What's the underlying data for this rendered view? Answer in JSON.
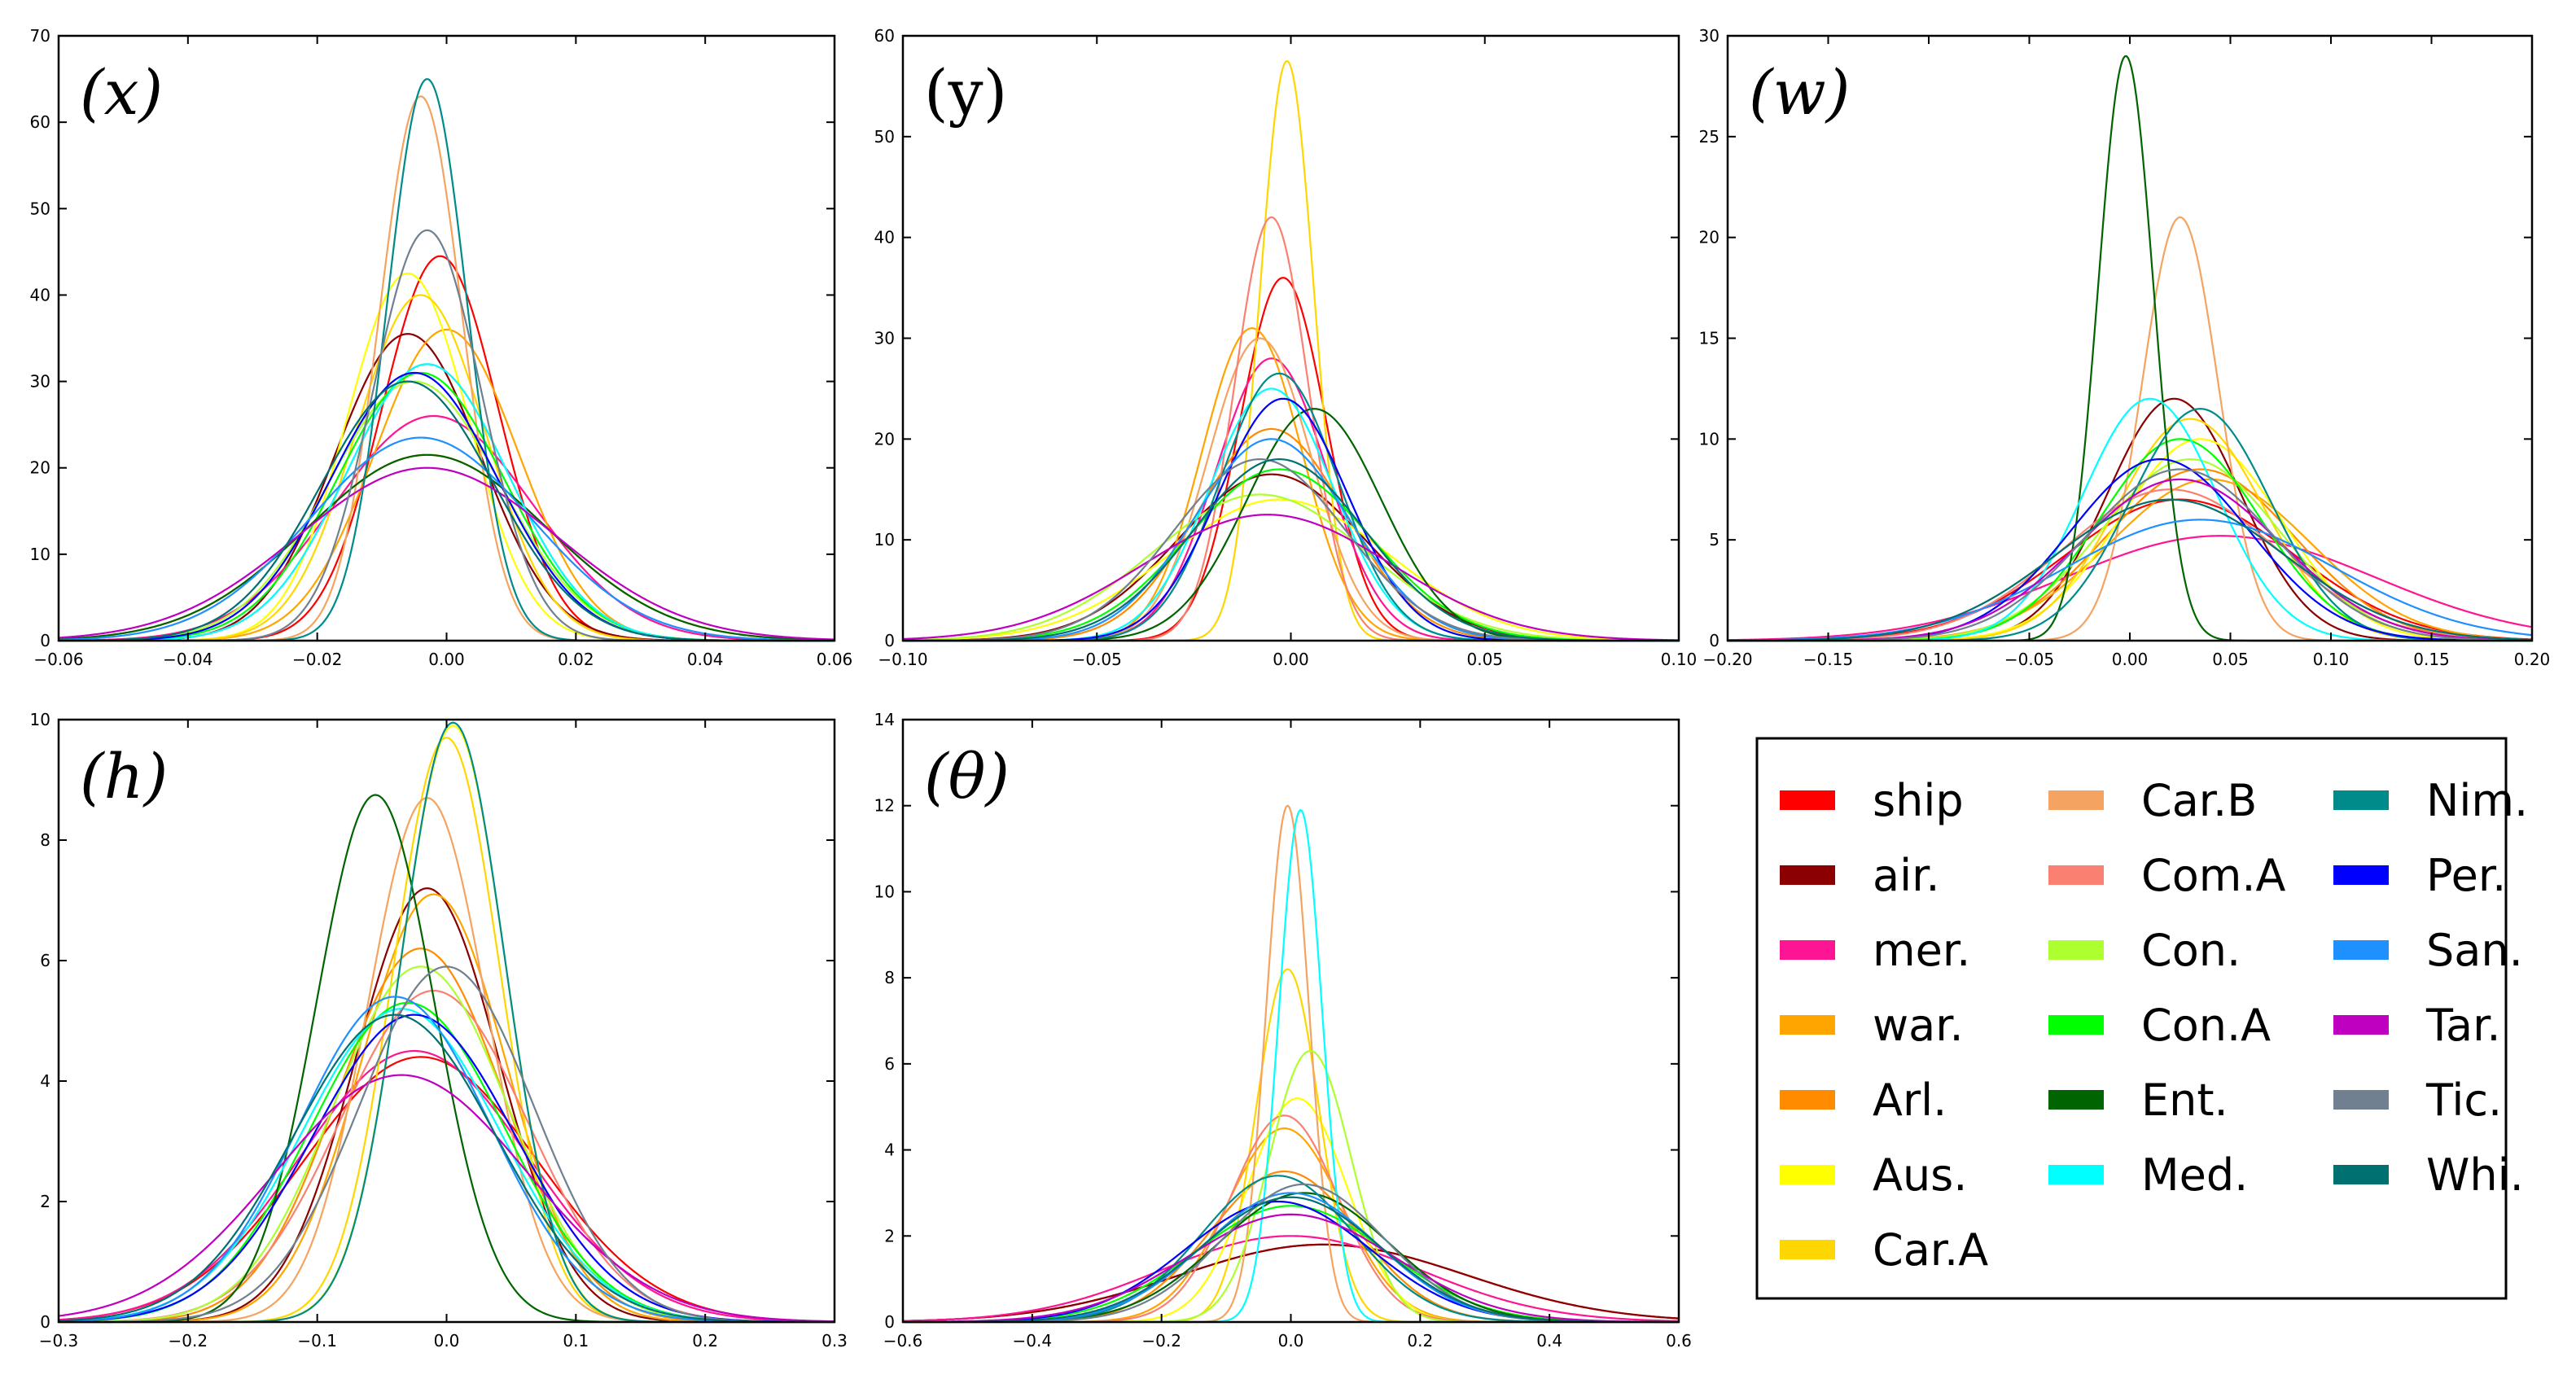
{
  "chart_data": [
    {
      "type": "line",
      "panel_label": "(x)",
      "label_italic": true,
      "xlim": [
        -0.06,
        0.06
      ],
      "ylim": [
        0,
        70
      ],
      "xticks": [
        -0.06,
        -0.04,
        -0.02,
        0.0,
        0.02,
        0.04,
        0.06
      ],
      "xtick_labels": [
        "−0.06",
        "−0.04",
        "−0.02",
        "0.00",
        "0.02",
        "0.04",
        "0.06"
      ],
      "yticks": [
        0,
        10,
        20,
        30,
        40,
        50,
        60,
        70
      ],
      "ytick_labels": [
        "0",
        "10",
        "20",
        "30",
        "40",
        "50",
        "60",
        "70"
      ],
      "series": [
        {
          "name": "ship",
          "mean": -0.001,
          "peak": 44.5
        },
        {
          "name": "air.",
          "mean": -0.006,
          "peak": 35.5
        },
        {
          "name": "mer.",
          "mean": -0.002,
          "peak": 26
        },
        {
          "name": "war.",
          "mean": 0.0,
          "peak": 36
        },
        {
          "name": "Arl.",
          "mean": -0.003,
          "peak": 21.5
        },
        {
          "name": "Aus.",
          "mean": -0.006,
          "peak": 42.5
        },
        {
          "name": "Car.A",
          "mean": -0.004,
          "peak": 40
        },
        {
          "name": "Car.B",
          "mean": -0.004,
          "peak": 63
        },
        {
          "name": "Com.A",
          "mean": -0.003,
          "peak": 32
        },
        {
          "name": "Con.",
          "mean": -0.005,
          "peak": 30
        },
        {
          "name": "Con.A",
          "mean": -0.004,
          "peak": 31
        },
        {
          "name": "Ent.",
          "mean": -0.003,
          "peak": 21.5
        },
        {
          "name": "Med.",
          "mean": -0.003,
          "peak": 32
        },
        {
          "name": "Nim.",
          "mean": -0.003,
          "peak": 65
        },
        {
          "name": "Per.",
          "mean": -0.005,
          "peak": 31
        },
        {
          "name": "San.",
          "mean": -0.004,
          "peak": 23.5
        },
        {
          "name": "Tar.",
          "mean": -0.003,
          "peak": 20
        },
        {
          "name": "Tic.",
          "mean": -0.003,
          "peak": 47.5
        },
        {
          "name": "Whi.",
          "mean": -0.006,
          "peak": 30
        }
      ]
    },
    {
      "type": "line",
      "panel_label": "(y)",
      "label_italic": false,
      "xlim": [
        -0.1,
        0.1
      ],
      "ylim": [
        0,
        60
      ],
      "xticks": [
        -0.1,
        -0.05,
        0.0,
        0.05,
        0.1
      ],
      "xtick_labels": [
        "−0.10",
        "−0.05",
        "0.00",
        "0.05",
        "0.10"
      ],
      "yticks": [
        0,
        10,
        20,
        30,
        40,
        50,
        60
      ],
      "ytick_labels": [
        "0",
        "10",
        "20",
        "30",
        "40",
        "50",
        "60"
      ],
      "series": [
        {
          "name": "ship",
          "mean": -0.002,
          "peak": 36
        },
        {
          "name": "air.",
          "mean": -0.005,
          "peak": 16.5
        },
        {
          "name": "mer.",
          "mean": -0.005,
          "peak": 28
        },
        {
          "name": "war.",
          "mean": -0.01,
          "peak": 31
        },
        {
          "name": "Arl.",
          "mean": -0.005,
          "peak": 21
        },
        {
          "name": "Aus.",
          "mean": -0.003,
          "peak": 14
        },
        {
          "name": "Car.A",
          "mean": -0.001,
          "peak": 57.5
        },
        {
          "name": "Car.B",
          "mean": -0.008,
          "peak": 30
        },
        {
          "name": "Com.A",
          "mean": -0.005,
          "peak": 42
        },
        {
          "name": "Con.",
          "mean": -0.008,
          "peak": 14.5
        },
        {
          "name": "Con.A",
          "mean": -0.003,
          "peak": 17
        },
        {
          "name": "Ent.",
          "mean": 0.006,
          "peak": 23
        },
        {
          "name": "Med.",
          "mean": -0.005,
          "peak": 25
        },
        {
          "name": "Nim.",
          "mean": -0.003,
          "peak": 26.5
        },
        {
          "name": "Per.",
          "mean": -0.002,
          "peak": 24
        },
        {
          "name": "San.",
          "mean": -0.005,
          "peak": 20
        },
        {
          "name": "Tar.",
          "mean": -0.006,
          "peak": 12.5
        },
        {
          "name": "Tic.",
          "mean": -0.008,
          "peak": 18
        },
        {
          "name": "Whi.",
          "mean": -0.003,
          "peak": 18
        }
      ]
    },
    {
      "type": "line",
      "panel_label": "(w)",
      "label_italic": true,
      "xlim": [
        -0.2,
        0.2
      ],
      "ylim": [
        0,
        30
      ],
      "xticks": [
        -0.2,
        -0.15,
        -0.1,
        -0.05,
        0.0,
        0.05,
        0.1,
        0.15,
        0.2
      ],
      "xtick_labels": [
        "−0.20",
        "−0.15",
        "−0.10",
        "−0.05",
        "0.00",
        "0.05",
        "0.10",
        "0.15",
        "0.20"
      ],
      "yticks": [
        0,
        5,
        10,
        15,
        20,
        25,
        30
      ],
      "ytick_labels": [
        "0",
        "5",
        "10",
        "15",
        "20",
        "25",
        "30"
      ],
      "series": [
        {
          "name": "ship",
          "mean": 0.025,
          "peak": 7
        },
        {
          "name": "air.",
          "mean": 0.022,
          "peak": 12
        },
        {
          "name": "mer.",
          "mean": 0.045,
          "peak": 5.2
        },
        {
          "name": "war.",
          "mean": 0.04,
          "peak": 8
        },
        {
          "name": "Arl.",
          "mean": 0.035,
          "peak": 8.5
        },
        {
          "name": "Aus.",
          "mean": 0.035,
          "peak": 10
        },
        {
          "name": "Car.A",
          "mean": 0.03,
          "peak": 11
        },
        {
          "name": "Car.B",
          "mean": 0.025,
          "peak": 21
        },
        {
          "name": "Com.A",
          "mean": 0.02,
          "peak": 7.5
        },
        {
          "name": "Con.",
          "mean": 0.03,
          "peak": 9
        },
        {
          "name": "Con.A",
          "mean": 0.025,
          "peak": 10
        },
        {
          "name": "Ent.",
          "mean": -0.002,
          "peak": 29
        },
        {
          "name": "Med.",
          "mean": 0.01,
          "peak": 12
        },
        {
          "name": "Nim.",
          "mean": 0.035,
          "peak": 11.5
        },
        {
          "name": "Per.",
          "mean": 0.015,
          "peak": 9
        },
        {
          "name": "San.",
          "mean": 0.035,
          "peak": 6
        },
        {
          "name": "Tar.",
          "mean": 0.025,
          "peak": 8
        },
        {
          "name": "Tic.",
          "mean": 0.025,
          "peak": 8.5
        },
        {
          "name": "Whi.",
          "mean": 0.02,
          "peak": 7
        }
      ]
    },
    {
      "type": "line",
      "panel_label": "(h)",
      "label_italic": true,
      "xlim": [
        -0.3,
        0.3
      ],
      "ylim": [
        0,
        10
      ],
      "xticks": [
        -0.3,
        -0.2,
        -0.1,
        0.0,
        0.1,
        0.2,
        0.3
      ],
      "xtick_labels": [
        "−0.3",
        "−0.2",
        "−0.1",
        "0.0",
        "0.1",
        "0.2",
        "0.3"
      ],
      "yticks": [
        0,
        2,
        4,
        6,
        8,
        10
      ],
      "ytick_labels": [
        "0",
        "2",
        "4",
        "6",
        "8",
        "10"
      ],
      "series": [
        {
          "name": "ship",
          "mean": -0.02,
          "peak": 4.4
        },
        {
          "name": "air.",
          "mean": -0.015,
          "peak": 7.2
        },
        {
          "name": "mer.",
          "mean": -0.025,
          "peak": 4.5
        },
        {
          "name": "war.",
          "mean": -0.01,
          "peak": 7.1
        },
        {
          "name": "Arl.",
          "mean": -0.02,
          "peak": 6.2
        },
        {
          "name": "Aus.",
          "mean": 0.005,
          "peak": 9.9
        },
        {
          "name": "Car.A",
          "mean": 0.0,
          "peak": 9.7
        },
        {
          "name": "Car.B",
          "mean": -0.015,
          "peak": 8.7
        },
        {
          "name": "Com.A",
          "mean": -0.01,
          "peak": 5.5
        },
        {
          "name": "Con.",
          "mean": -0.02,
          "peak": 5.9
        },
        {
          "name": "Con.A",
          "mean": -0.03,
          "peak": 5.3
        },
        {
          "name": "Ent.",
          "mean": -0.055,
          "peak": 8.75
        },
        {
          "name": "Med.",
          "mean": -0.035,
          "peak": 5.2
        },
        {
          "name": "Nim.",
          "mean": 0.005,
          "peak": 9.95
        },
        {
          "name": "Per.",
          "mean": -0.025,
          "peak": 5.1
        },
        {
          "name": "San.",
          "mean": -0.04,
          "peak": 5.4
        },
        {
          "name": "Tar.",
          "mean": -0.035,
          "peak": 4.1
        },
        {
          "name": "Tic.",
          "mean": 0.0,
          "peak": 5.9
        },
        {
          "name": "Whi.",
          "mean": -0.04,
          "peak": 5.1
        }
      ]
    },
    {
      "type": "line",
      "panel_label": "(θ)",
      "label_italic": true,
      "xlim": [
        -0.6,
        0.6
      ],
      "ylim": [
        0,
        14
      ],
      "xticks": [
        -0.6,
        -0.4,
        -0.2,
        0.0,
        0.2,
        0.4,
        0.6
      ],
      "xtick_labels": [
        "−0.6",
        "−0.4",
        "−0.2",
        "0.0",
        "0.2",
        "0.4",
        "0.6"
      ],
      "yticks": [
        0,
        2,
        4,
        6,
        8,
        10,
        12,
        14
      ],
      "ytick_labels": [
        "0",
        "2",
        "4",
        "6",
        "8",
        "10",
        "12",
        "14"
      ],
      "series": [
        {
          "name": "ship",
          "mean": 0.05,
          "peak": 1.8
        },
        {
          "name": "air.",
          "mean": 0.05,
          "peak": 1.8
        },
        {
          "name": "mer.",
          "mean": 0.0,
          "peak": 2.0
        },
        {
          "name": "war.",
          "mean": -0.01,
          "peak": 4.5
        },
        {
          "name": "Arl.",
          "mean": -0.01,
          "peak": 3.5
        },
        {
          "name": "Aus.",
          "mean": 0.01,
          "peak": 5.2
        },
        {
          "name": "Car.A",
          "mean": -0.005,
          "peak": 8.2
        },
        {
          "name": "Car.B",
          "mean": -0.005,
          "peak": 12.0
        },
        {
          "name": "Com.A",
          "mean": -0.01,
          "peak": 4.8
        },
        {
          "name": "Con.",
          "mean": 0.03,
          "peak": 6.3
        },
        {
          "name": "Con.A",
          "mean": 0.0,
          "peak": 2.7
        },
        {
          "name": "Ent.",
          "mean": 0.02,
          "peak": 3.0
        },
        {
          "name": "Med.",
          "mean": 0.015,
          "peak": 11.9
        },
        {
          "name": "Nim.",
          "mean": -0.02,
          "peak": 3.4
        },
        {
          "name": "Per.",
          "mean": -0.02,
          "peak": 2.8
        },
        {
          "name": "San.",
          "mean": 0.0,
          "peak": 3.0
        },
        {
          "name": "Tar.",
          "mean": 0.0,
          "peak": 2.5
        },
        {
          "name": "Tic.",
          "mean": 0.02,
          "peak": 3.2
        },
        {
          "name": "Whi.",
          "mean": 0.0,
          "peak": 2.9
        }
      ]
    }
  ],
  "legend": {
    "items": [
      {
        "name": "ship",
        "color": "#FF0000"
      },
      {
        "name": "air.",
        "color": "#8B0000"
      },
      {
        "name": "mer.",
        "color": "#FF1493"
      },
      {
        "name": "war.",
        "color": "#FFA500"
      },
      {
        "name": "Arl.",
        "color": "#FF8C00"
      },
      {
        "name": "Aus.",
        "color": "#FFFF00"
      },
      {
        "name": "Car.A",
        "color": "#FFD700"
      },
      {
        "name": "Car.B",
        "color": "#F4A460"
      },
      {
        "name": "Com.A",
        "color": "#FA8072"
      },
      {
        "name": "Con.",
        "color": "#ADFF2F"
      },
      {
        "name": "Con.A",
        "color": "#00FF00"
      },
      {
        "name": "Ent.",
        "color": "#006400"
      },
      {
        "name": "Med.",
        "color": "#00FFFF"
      },
      {
        "name": "Nim.",
        "color": "#008B8B"
      },
      {
        "name": "Per.",
        "color": "#0000FF"
      },
      {
        "name": "San.",
        "color": "#1E90FF"
      },
      {
        "name": "Tar.",
        "color": "#C000C0"
      },
      {
        "name": "Tic.",
        "color": "#708090"
      },
      {
        "name": "Whi.",
        "color": "#007070"
      }
    ]
  }
}
